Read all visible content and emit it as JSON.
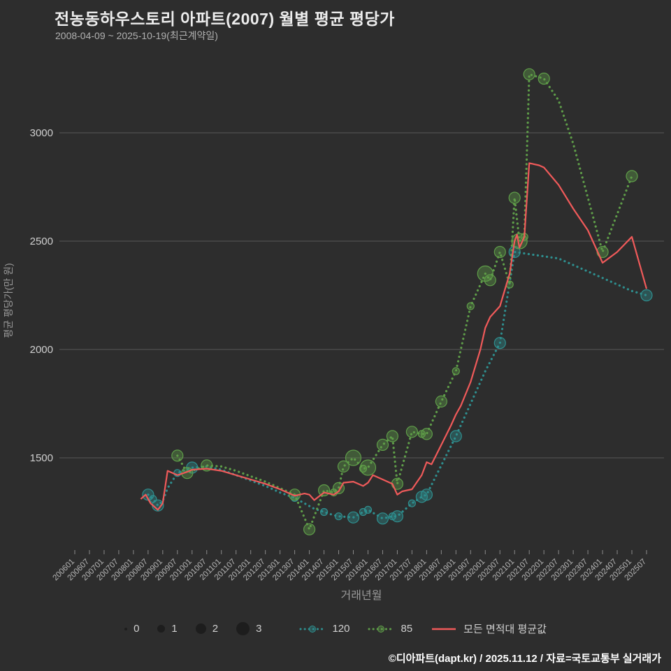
{
  "header": {
    "title": "전농동하우스토리 아파트(2007) 월별 평균 평당가",
    "subtitle": "2008-04-09 ~ 2025-10-19(최근계약일)"
  },
  "legend": {
    "sizes": [
      "0",
      "1",
      "2",
      "3"
    ]
  },
  "footer": {
    "credit": "©디아파트(dapt.kr) / 2025.11.12 / 자료=국토교통부 실거래가"
  },
  "chart_data": {
    "type": "scatter",
    "title": "전농동하우스토리 아파트(2007) 월별 평균 평당가",
    "xlabel": "거래년월",
    "ylabel": "평균 평당가(만 원)",
    "ylim": [
      1050,
      3400
    ],
    "y_ticks": [
      1500,
      2000,
      2500,
      3000
    ],
    "x_ticks": [
      "200601",
      "200607",
      "200701",
      "200707",
      "200801",
      "200807",
      "200901",
      "200907",
      "201001",
      "201007",
      "201101",
      "201107",
      "201201",
      "201207",
      "201301",
      "201307",
      "201401",
      "201407",
      "201501",
      "201507",
      "201601",
      "201607",
      "201701",
      "201707",
      "201801",
      "201807",
      "201901",
      "201907",
      "202001",
      "202007",
      "202101",
      "202107",
      "202201",
      "202207",
      "202301",
      "202307",
      "202401",
      "202407",
      "202501",
      "202507"
    ],
    "grid": "horizontal",
    "legend_position": "bottom",
    "background": "#2d2d2d",
    "gridline_color": "#585858",
    "series": [
      {
        "name": "120",
        "type": "dotted-line-bubble",
        "color": "#2e8f8f",
        "fill": "rgba(46,143,143,0.4)",
        "points": [
          [
            "200807",
            1330,
            2
          ],
          [
            "200809",
            1310,
            1
          ],
          [
            "200811",
            1280,
            2
          ],
          [
            "200901",
            1300,
            0
          ],
          [
            "200903",
            1360,
            0
          ],
          [
            "200907",
            1430,
            1
          ],
          [
            "201001",
            1455,
            2
          ],
          [
            "201007",
            1460,
            0
          ],
          [
            "201101",
            1445,
            0
          ],
          [
            "201107",
            1420,
            0
          ],
          [
            "201201",
            1395,
            0
          ],
          [
            "201207",
            1370,
            0
          ],
          [
            "201301",
            1340,
            0
          ],
          [
            "201307",
            1315,
            1
          ],
          [
            "201311",
            1290,
            0
          ],
          [
            "201403",
            1265,
            0
          ],
          [
            "201407",
            1250,
            1
          ],
          [
            "201411",
            1235,
            0
          ],
          [
            "201501",
            1230,
            1
          ],
          [
            "201507",
            1225,
            2
          ],
          [
            "201511",
            1250,
            1
          ],
          [
            "201601",
            1260,
            1
          ],
          [
            "201607",
            1220,
            2
          ],
          [
            "201611",
            1230,
            1
          ],
          [
            "201701",
            1230,
            2
          ],
          [
            "201707",
            1290,
            1
          ],
          [
            "201711",
            1320,
            2
          ],
          [
            "201801",
            1330,
            2
          ],
          [
            "201901",
            1600,
            2
          ],
          [
            "201907",
            1750,
            0
          ],
          [
            "202001",
            1900,
            0
          ],
          [
            "202007",
            2030,
            2
          ],
          [
            "202101",
            2450,
            2
          ],
          [
            "202207",
            2420,
            0
          ],
          [
            "202301",
            2390,
            0
          ],
          [
            "202307",
            2360,
            0
          ],
          [
            "202401",
            2330,
            0
          ],
          [
            "202407",
            2300,
            0
          ],
          [
            "202501",
            2270,
            0
          ],
          [
            "202507",
            2250,
            2
          ]
        ]
      },
      {
        "name": "85",
        "type": "dotted-line-bubble",
        "color": "#5f9e49",
        "fill": "rgba(95,158,73,0.4)",
        "points": [
          [
            "200907",
            1510,
            2
          ],
          [
            "200911",
            1430,
            2
          ],
          [
            "201001",
            1440,
            0
          ],
          [
            "201007",
            1465,
            2
          ],
          [
            "201101",
            1460,
            0
          ],
          [
            "201107",
            1440,
            0
          ],
          [
            "201201",
            1415,
            0
          ],
          [
            "201207",
            1390,
            0
          ],
          [
            "201301",
            1360,
            0
          ],
          [
            "201307",
            1330,
            2
          ],
          [
            "201401",
            1170,
            2
          ],
          [
            "201407",
            1350,
            2
          ],
          [
            "201411",
            1340,
            1
          ],
          [
            "201501",
            1360,
            2
          ],
          [
            "201503",
            1460,
            2
          ],
          [
            "201507",
            1500,
            3
          ],
          [
            "201511",
            1450,
            1
          ],
          [
            "201601",
            1455,
            3
          ],
          [
            "201607",
            1560,
            2
          ],
          [
            "201611",
            1600,
            2
          ],
          [
            "201701",
            1380,
            2
          ],
          [
            "201707",
            1620,
            2
          ],
          [
            "201711",
            1610,
            1
          ],
          [
            "201801",
            1610,
            2
          ],
          [
            "201807",
            1760,
            2
          ],
          [
            "201901",
            1900,
            1
          ],
          [
            "201907",
            2200,
            1
          ],
          [
            "202001",
            2350,
            3
          ],
          [
            "202003",
            2320,
            2
          ],
          [
            "202007",
            2450,
            2
          ],
          [
            "202011",
            2300,
            1
          ],
          [
            "202101",
            2700,
            2
          ],
          [
            "202103",
            2500,
            3
          ],
          [
            "202105",
            2520,
            1
          ],
          [
            "202107",
            3270,
            2
          ],
          [
            "202201",
            3250,
            2
          ],
          [
            "202207",
            3150,
            0
          ],
          [
            "202301",
            2950,
            0
          ],
          [
            "202307",
            2700,
            0
          ],
          [
            "202401",
            2450,
            2
          ],
          [
            "202501",
            2800,
            2
          ]
        ]
      },
      {
        "name": "모든 면적대 평균값",
        "type": "line",
        "color": "#f05a5a",
        "points": [
          [
            "200804",
            1310
          ],
          [
            "200806",
            1330
          ],
          [
            "200808",
            1290
          ],
          [
            "200811",
            1260
          ],
          [
            "200901",
            1290
          ],
          [
            "200903",
            1440
          ],
          [
            "200907",
            1420
          ],
          [
            "200911",
            1435
          ],
          [
            "201001",
            1445
          ],
          [
            "201007",
            1450
          ],
          [
            "201101",
            1440
          ],
          [
            "201107",
            1420
          ],
          [
            "201201",
            1400
          ],
          [
            "201207",
            1380
          ],
          [
            "201301",
            1355
          ],
          [
            "201307",
            1325
          ],
          [
            "201311",
            1335
          ],
          [
            "201401",
            1330
          ],
          [
            "201403",
            1305
          ],
          [
            "201407",
            1340
          ],
          [
            "201411",
            1330
          ],
          [
            "201501",
            1345
          ],
          [
            "201503",
            1385
          ],
          [
            "201507",
            1390
          ],
          [
            "201511",
            1370
          ],
          [
            "201601",
            1385
          ],
          [
            "201603",
            1420
          ],
          [
            "201607",
            1400
          ],
          [
            "201611",
            1380
          ],
          [
            "201701",
            1330
          ],
          [
            "201703",
            1345
          ],
          [
            "201707",
            1355
          ],
          [
            "201711",
            1420
          ],
          [
            "201801",
            1480
          ],
          [
            "201803",
            1470
          ],
          [
            "201807",
            1560
          ],
          [
            "201811",
            1650
          ],
          [
            "201901",
            1700
          ],
          [
            "201903",
            1740
          ],
          [
            "201907",
            1850
          ],
          [
            "201911",
            2000
          ],
          [
            "202001",
            2100
          ],
          [
            "202003",
            2150
          ],
          [
            "202007",
            2200
          ],
          [
            "202011",
            2350
          ],
          [
            "202101",
            2500
          ],
          [
            "202102",
            2530
          ],
          [
            "202103",
            2470
          ],
          [
            "202105",
            2520
          ],
          [
            "202107",
            2860
          ],
          [
            "202111",
            2850
          ],
          [
            "202201",
            2840
          ],
          [
            "202207",
            2760
          ],
          [
            "202301",
            2650
          ],
          [
            "202307",
            2550
          ],
          [
            "202401",
            2400
          ],
          [
            "202407",
            2450
          ],
          [
            "202501",
            2520
          ],
          [
            "202507",
            2280
          ]
        ]
      }
    ]
  }
}
